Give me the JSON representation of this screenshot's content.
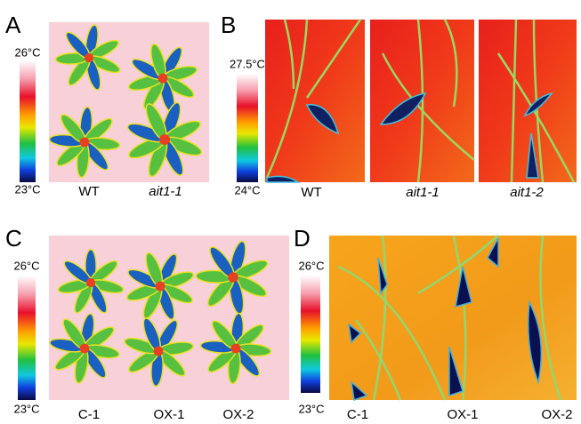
{
  "panels": [
    {
      "label": "A",
      "scale_max": "26°C",
      "scale_min": "23°C",
      "samples": [
        "WT",
        "ait1-1"
      ]
    },
    {
      "label": "B",
      "scale_max": "27.5°C",
      "scale_min": "24°C",
      "samples": [
        "WT",
        "ait1-1",
        "ait1-2"
      ]
    },
    {
      "label": "C",
      "scale_max": "26°C",
      "scale_min": "23°C",
      "samples": [
        "C-1",
        "OX-1",
        "OX-2"
      ]
    },
    {
      "label": "D",
      "scale_max": "26°C",
      "scale_min": "23°C",
      "samples": [
        "C-1",
        "OX-1",
        "OX-2"
      ]
    }
  ]
}
